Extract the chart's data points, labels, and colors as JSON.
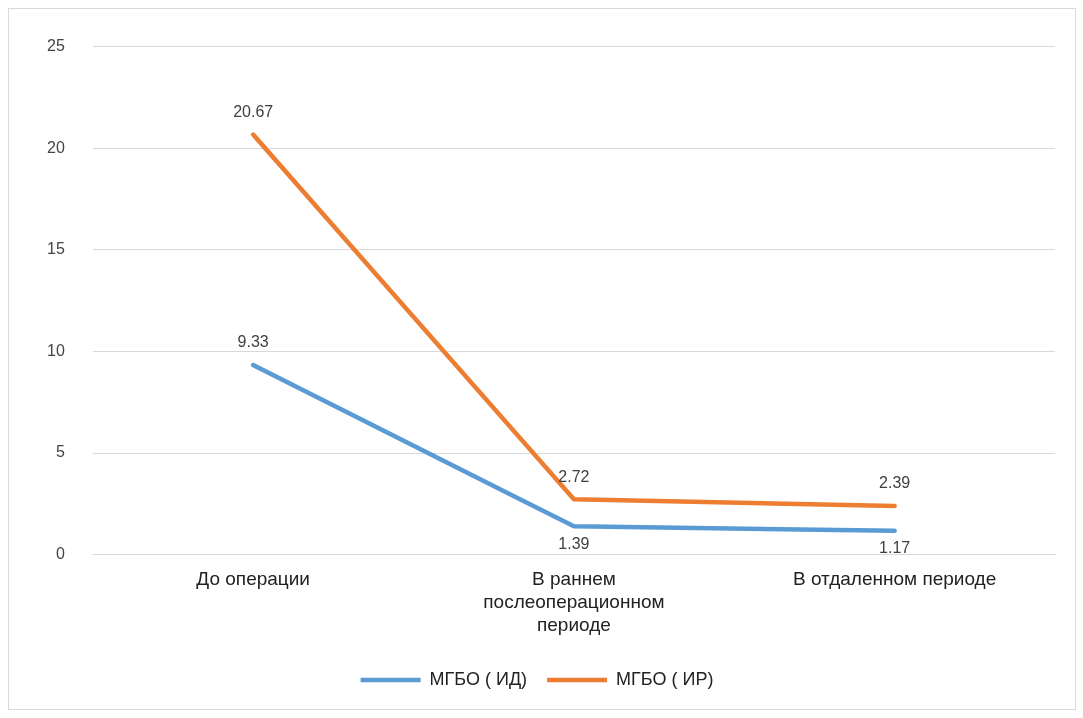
{
  "chart_data": {
    "type": "line",
    "categories": [
      "До операции",
      "В раннем послеоперационном периоде",
      "В отдаленном периоде"
    ],
    "series": [
      {
        "name": "МГБО ( ИД)",
        "color": "#5b9bd5",
        "values": [
          9.33,
          1.39,
          1.17
        ]
      },
      {
        "name": "МГБО ( ИР)",
        "color": "#ed7d31",
        "values": [
          20.67,
          2.72,
          2.39
        ]
      }
    ],
    "ylim": [
      0,
      25
    ],
    "yticks": [
      0,
      5,
      10,
      15,
      20,
      25
    ],
    "grid": "y",
    "legend": "bottom",
    "data_labels": true,
    "marker": "none",
    "line_style": "solid"
  }
}
